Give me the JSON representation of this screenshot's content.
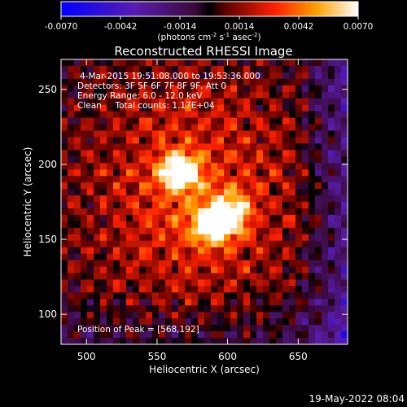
{
  "colorbar": {
    "ticks": [
      "-0.0070",
      "-0.0042",
      "-0.0014",
      "0.0014",
      "0.0042",
      "0.0070"
    ],
    "unit_prefix": "(photons cm",
    "unit_exp1": "-2",
    "unit_mid": " s",
    "unit_exp2": "-1",
    "unit_mid2": " asec",
    "unit_exp3": "-2",
    "unit_suffix": ")"
  },
  "chart_data": {
    "type": "heatmap",
    "title": "Reconstructed RHESSI Image",
    "xlabel": "Heliocentric X (arcsec)",
    "ylabel": "Heliocentric Y (arcsec)",
    "xlim": [
      482,
      685
    ],
    "ylim": [
      80,
      270
    ],
    "x_ticks": [
      500,
      550,
      600,
      650
    ],
    "y_ticks": [
      100,
      150,
      200,
      250
    ],
    "clim": [
      -0.007,
      0.007
    ],
    "colormap": "blue-purple-red-yellow-white",
    "peak": {
      "x": 568,
      "y": 192
    },
    "sources": [
      {
        "x": 566,
        "y": 195,
        "amplitude": 0.007
      },
      {
        "x": 588,
        "y": 160,
        "amplitude": 0.0068
      },
      {
        "x": 602,
        "y": 166,
        "amplitude": 0.006
      }
    ],
    "annotations": [
      "4-Mar-2015 19:51:08.000 to 19:53:36.000",
      "Detectors: 3F 5F 6F 7F 8F 9F, Att 0",
      "Energy Range: 6.0 - 12.0 keV",
      "Clean     Total counts: 1.17E+04"
    ],
    "peak_label": "Position of Peak = [568,192]"
  },
  "footer": {
    "date": "19-May-2022 08:04"
  }
}
